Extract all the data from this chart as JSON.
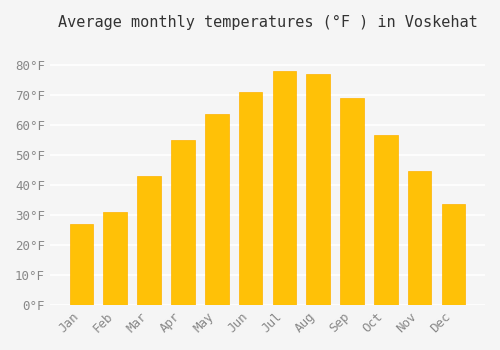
{
  "title": "Average monthly temperatures (°F ) in Voskehat",
  "months": [
    "Jan",
    "Feb",
    "Mar",
    "Apr",
    "May",
    "Jun",
    "Jul",
    "Aug",
    "Sep",
    "Oct",
    "Nov",
    "Dec"
  ],
  "values": [
    27,
    31,
    43,
    55,
    63.5,
    71,
    78,
    77,
    69,
    56.5,
    44.5,
    33.5
  ],
  "bar_color_face": "#FFC107",
  "bar_color_edge": "#FFB300",
  "background_color": "#F5F5F5",
  "grid_color": "#FFFFFF",
  "ylim": [
    0,
    88
  ],
  "yticks": [
    0,
    10,
    20,
    30,
    40,
    50,
    60,
    70,
    80
  ],
  "title_fontsize": 11,
  "tick_fontsize": 9,
  "font_family": "monospace"
}
